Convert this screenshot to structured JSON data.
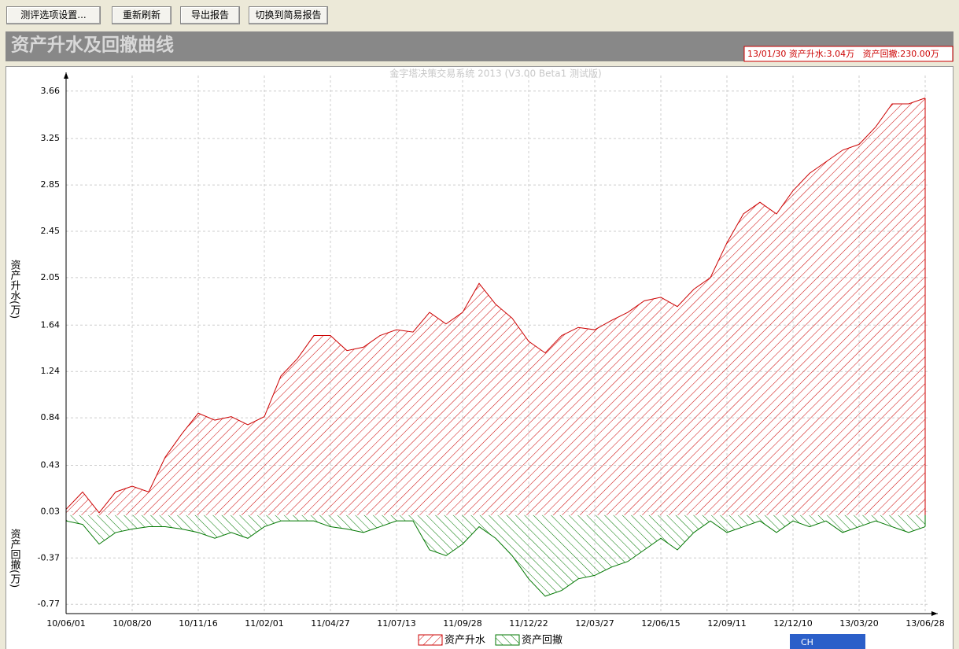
{
  "toolbar": {
    "buttons": [
      "测评选项设置...",
      "重新刷新",
      "导出报告",
      "切换到简易报告"
    ]
  },
  "header": {
    "title": "资产升水及回撤曲线",
    "info": "13/01/30 资产升水:3.04万   资产回撤:230.00万"
  },
  "ime_bar": {
    "label": "CH"
  },
  "chart_data": {
    "type": "area",
    "title": "金字塔决策交易系统 2013 (V3.00 Beta1 测试版)",
    "y_label_up": "资产升水(万)",
    "y_label_down": "资产回撤(万)",
    "categories": [
      "10/06/01",
      null,
      null,
      null,
      "10/08/20",
      null,
      null,
      null,
      "10/11/16",
      null,
      null,
      null,
      "11/02/01",
      null,
      null,
      null,
      "11/04/27",
      null,
      null,
      null,
      "11/07/13",
      null,
      null,
      null,
      "11/09/28",
      null,
      null,
      null,
      "11/12/22",
      null,
      null,
      null,
      "12/03/27",
      null,
      null,
      null,
      "12/06/15",
      null,
      null,
      null,
      "12/09/11",
      null,
      null,
      null,
      "12/12/10",
      null,
      null,
      null,
      "13/03/20",
      null,
      null,
      null,
      "13/06/28"
    ],
    "series": [
      {
        "name": "资产升水",
        "color": "#cc0000",
        "values": [
          0.05,
          0.2,
          0.02,
          0.2,
          0.25,
          0.2,
          0.5,
          0.7,
          0.88,
          0.82,
          0.85,
          0.78,
          0.85,
          1.2,
          1.35,
          1.55,
          1.55,
          1.42,
          1.45,
          1.55,
          1.6,
          1.58,
          1.75,
          1.65,
          1.75,
          2.0,
          1.82,
          1.7,
          1.5,
          1.4,
          1.55,
          1.62,
          1.6,
          1.68,
          1.75,
          1.85,
          1.88,
          1.8,
          1.95,
          2.05,
          2.35,
          2.6,
          2.7,
          2.6,
          2.8,
          2.95,
          3.05,
          3.15,
          3.2,
          3.35,
          3.55,
          3.55,
          3.6
        ]
      },
      {
        "name": "资产回撤",
        "color": "#007700",
        "values": [
          -0.05,
          -0.08,
          -0.25,
          -0.15,
          -0.12,
          -0.1,
          -0.1,
          -0.12,
          -0.15,
          -0.2,
          -0.15,
          -0.2,
          -0.1,
          -0.05,
          -0.05,
          -0.05,
          -0.1,
          -0.12,
          -0.15,
          -0.1,
          -0.05,
          -0.05,
          -0.3,
          -0.35,
          -0.25,
          -0.1,
          -0.2,
          -0.35,
          -0.55,
          -0.7,
          -0.65,
          -0.55,
          -0.52,
          -0.45,
          -0.4,
          -0.3,
          -0.2,
          -0.3,
          -0.15,
          -0.05,
          -0.15,
          -0.1,
          -0.05,
          -0.15,
          -0.05,
          -0.1,
          -0.05,
          -0.15,
          -0.1,
          -0.05,
          -0.1,
          -0.15,
          -0.1
        ]
      }
    ],
    "ylim": [
      -0.85,
      3.74
    ],
    "yticks": [
      -0.77,
      -0.37,
      0.03,
      0.43,
      0.84,
      1.24,
      1.64,
      2.05,
      2.45,
      2.85,
      3.25,
      3.66
    ],
    "grid": true
  }
}
